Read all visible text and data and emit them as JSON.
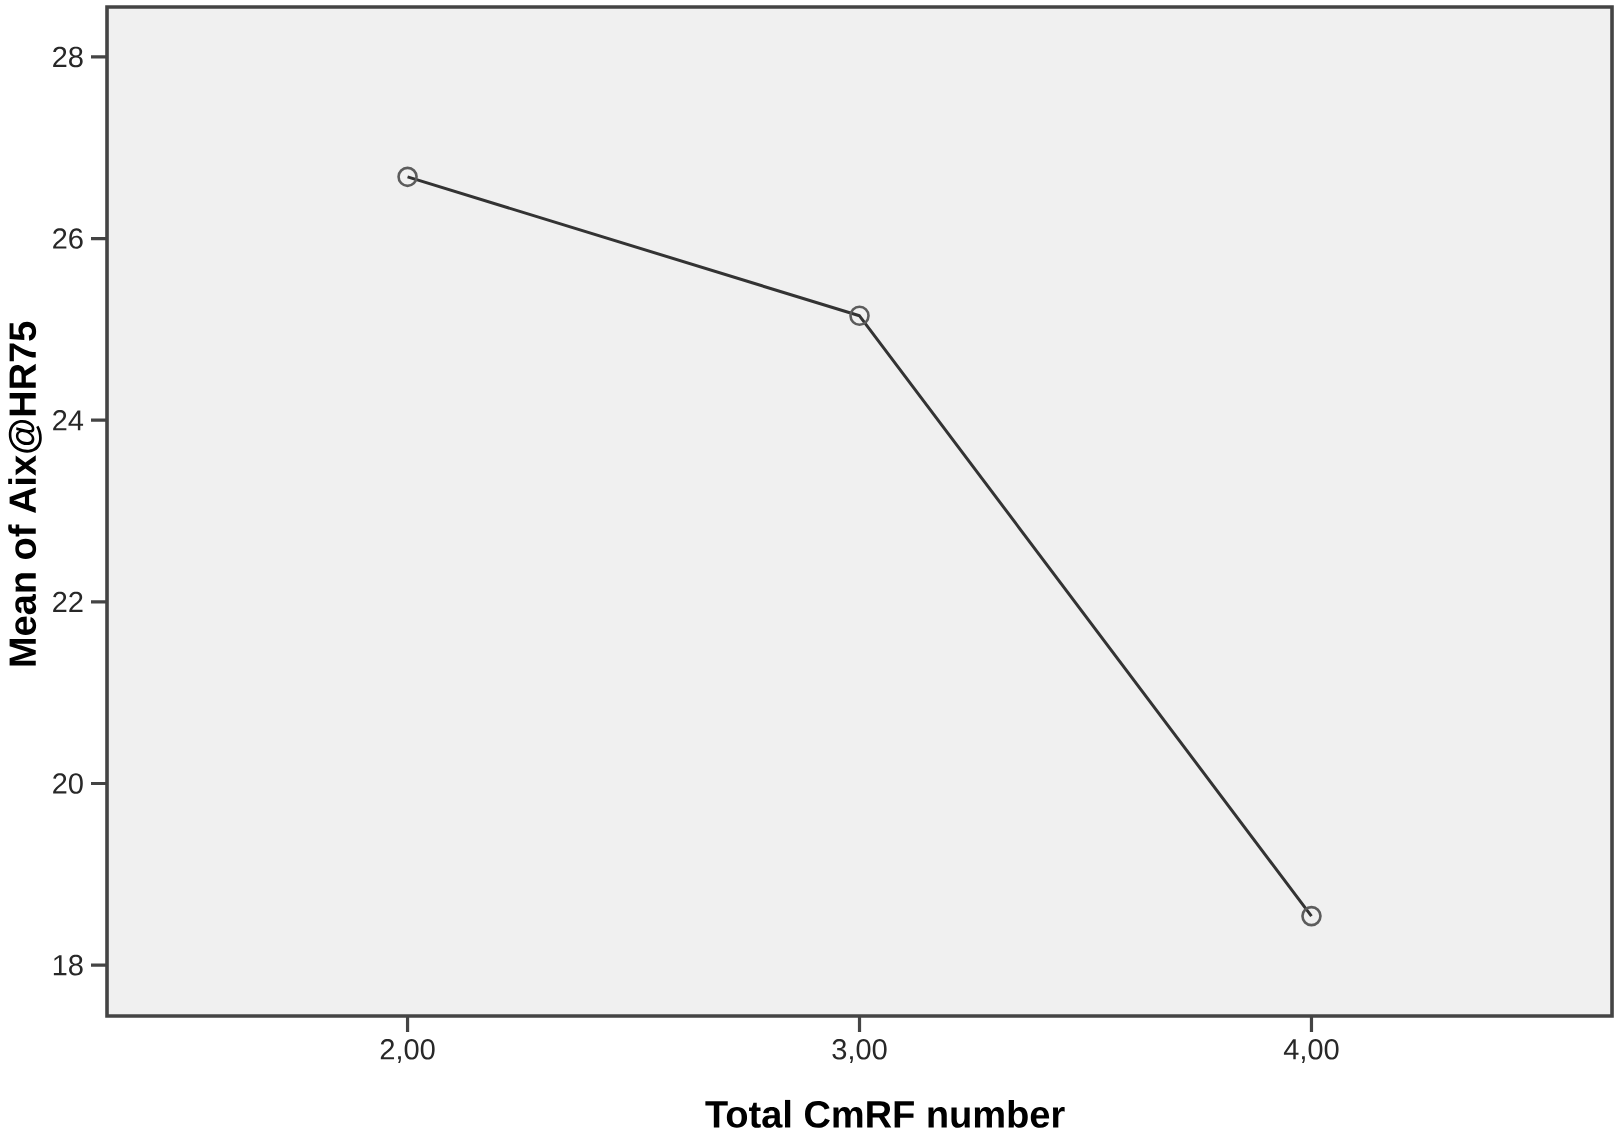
{
  "chart_data": {
    "type": "line",
    "xlabel": "Total CmRF number",
    "ylabel": "Mean of Aix@HR75",
    "categories": [
      "2,00",
      "3,00",
      "4,00"
    ],
    "series": [
      {
        "color": "#333333",
        "values": [
          26.68,
          25.15,
          18.54
        ]
      }
    ],
    "ylim": [
      17.44,
      28.55
    ],
    "yticks": [
      18,
      20,
      22,
      24,
      26,
      28
    ],
    "marker": "circle",
    "line_style": "solid"
  }
}
